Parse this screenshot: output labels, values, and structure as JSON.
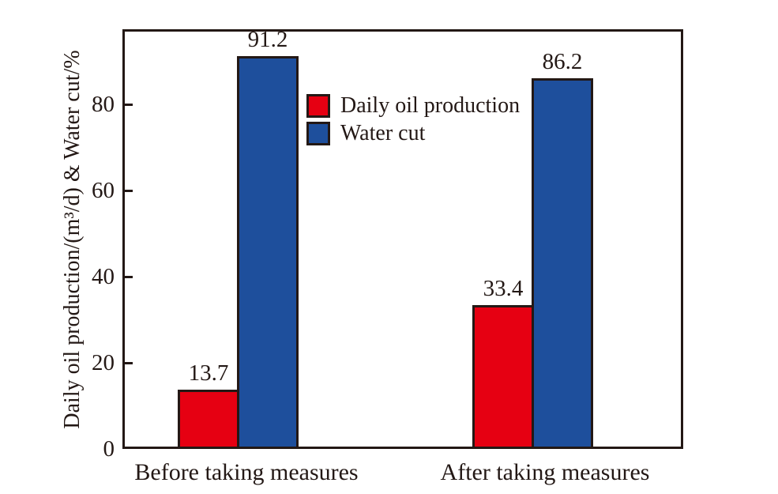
{
  "chart_data": {
    "type": "bar",
    "title": "",
    "y_axis_title": "Daily oil production/(m³/d) & Water cut/%",
    "categories": [
      "Before taking measures",
      "After taking measures"
    ],
    "series": [
      {
        "name": "Daily oil production",
        "color": "#e60012",
        "values": [
          13.7,
          33.4
        ]
      },
      {
        "name": "Water cut",
        "color": "#1e4f9c",
        "values": [
          91.2,
          86.2
        ]
      }
    ],
    "bar_value_labels": [
      "13.7",
      "91.2",
      "33.4",
      "86.2"
    ],
    "y_ticks": [
      0,
      20,
      40,
      60,
      80
    ],
    "ylim": [
      0,
      97.5
    ],
    "grid": false,
    "legend_position": "inside-upper-left-of-center",
    "axis_color": "#231815",
    "background_color": "#ffffff"
  }
}
